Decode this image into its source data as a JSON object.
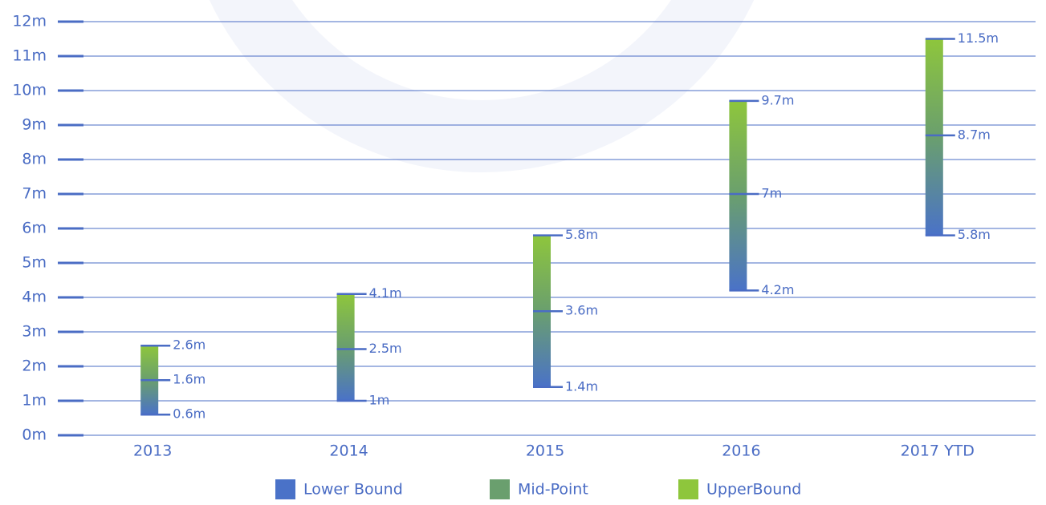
{
  "chart_data": {
    "type": "range-bar",
    "categories": [
      "2013",
      "2014",
      "2015",
      "2016",
      "2017 YTD"
    ],
    "series": [
      {
        "name": "Lower Bound",
        "color": "#4a72c8",
        "values": [
          0.6,
          1,
          1.4,
          4.2,
          5.8
        ],
        "value_labels": [
          "0.6m",
          "1m",
          "1.4m",
          "4.2m",
          "5.8m"
        ]
      },
      {
        "name": "Mid-Point",
        "color": "#6a9f6e",
        "values": [
          1.6,
          2.5,
          3.6,
          7,
          8.7
        ],
        "value_labels": [
          "1.6m",
          "2.5m",
          "3.6m",
          "7m",
          "8.7m"
        ]
      },
      {
        "name": "UpperBound",
        "color": "#8ec63c",
        "values": [
          2.6,
          4.1,
          5.8,
          9.7,
          11.5
        ],
        "value_labels": [
          "2.6m",
          "4.1m",
          "5.8m",
          "9.7m",
          "11.5m"
        ]
      }
    ],
    "ylim": [
      0,
      12
    ],
    "yticks": [
      {
        "value": 0,
        "label": "0m"
      },
      {
        "value": 1,
        "label": "1m"
      },
      {
        "value": 2,
        "label": "2m"
      },
      {
        "value": 3,
        "label": "3m"
      },
      {
        "value": 4,
        "label": "4m"
      },
      {
        "value": 5,
        "label": "5m"
      },
      {
        "value": 6,
        "label": "6m"
      },
      {
        "value": 7,
        "label": "7m"
      },
      {
        "value": 8,
        "label": "8m"
      },
      {
        "value": 9,
        "label": "9m"
      },
      {
        "value": 10,
        "label": "10m"
      },
      {
        "value": 11,
        "label": "11m"
      },
      {
        "value": 12,
        "label": "12m"
      }
    ],
    "grid": true
  }
}
